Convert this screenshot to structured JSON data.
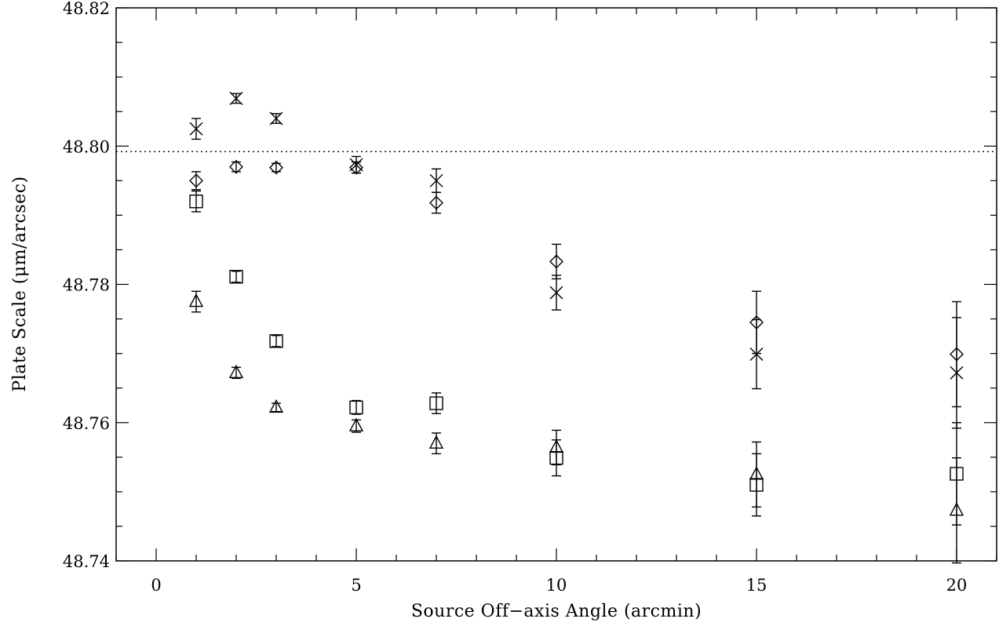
{
  "chart_data": {
    "type": "scatter",
    "title": "",
    "xlabel": "Source Off−axis Angle (arcmin)",
    "ylabel": "Plate Scale (μm/arcsec)",
    "xlim": [
      -1,
      21
    ],
    "ylim": [
      48.74,
      48.82
    ],
    "x_ticks": [
      0,
      5,
      10,
      15,
      20
    ],
    "x_tick_labels": [
      "0",
      "5",
      "10",
      "15",
      "20"
    ],
    "y_ticks": [
      48.74,
      48.76,
      48.78,
      48.8,
      48.82
    ],
    "y_tick_labels": [
      "48.74",
      "48.76",
      "48.78",
      "48.80",
      "48.82"
    ],
    "reference_line": {
      "y": 48.7992,
      "style": "dotted"
    },
    "grid": false,
    "legend": "none",
    "series": [
      {
        "marker": "x",
        "points": [
          {
            "x": 1,
            "y": 48.8025,
            "err": 0.0015
          },
          {
            "x": 2,
            "y": 48.8069,
            "err": 0.0007
          },
          {
            "x": 3,
            "y": 48.804,
            "err": 0.0007
          },
          {
            "x": 5,
            "y": 48.7973,
            "err": 0.0012
          },
          {
            "x": 7,
            "y": 48.795,
            "err": 0.0017
          },
          {
            "x": 10,
            "y": 48.7788,
            "err": 0.0025
          },
          {
            "x": 15,
            "y": 48.7699,
            "err": 0.005
          },
          {
            "x": 20,
            "y": 48.7672,
            "err": 0.008
          }
        ]
      },
      {
        "marker": "diamond",
        "points": [
          {
            "x": 1,
            "y": 48.795,
            "err": 0.0013
          },
          {
            "x": 2,
            "y": 48.797,
            "err": 0.0007
          },
          {
            "x": 3,
            "y": 48.7969,
            "err": 0.0006
          },
          {
            "x": 5,
            "y": 48.7969,
            "err": 0.0008
          },
          {
            "x": 7,
            "y": 48.7918,
            "err": 0.0015
          },
          {
            "x": 10,
            "y": 48.7833,
            "err": 0.0025
          },
          {
            "x": 15,
            "y": 48.7745,
            "err": 0.0045
          },
          {
            "x": 20,
            "y": 48.7699,
            "err": 0.0076
          }
        ]
      },
      {
        "marker": "square",
        "points": [
          {
            "x": 1,
            "y": 48.792,
            "err": 0.0015
          },
          {
            "x": 2,
            "y": 48.7811,
            "err": 0.0008
          },
          {
            "x": 3,
            "y": 48.7718,
            "err": 0.0008
          },
          {
            "x": 5,
            "y": 48.7622,
            "err": 0.001
          },
          {
            "x": 7,
            "y": 48.7628,
            "err": 0.0015
          },
          {
            "x": 10,
            "y": 48.7549,
            "err": 0.0026
          },
          {
            "x": 15,
            "y": 48.751,
            "err": 0.0045
          },
          {
            "x": 20,
            "y": 48.7526,
            "err": 0.0074
          }
        ]
      },
      {
        "marker": "triangle",
        "points": [
          {
            "x": 1,
            "y": 48.7775,
            "err": 0.0015
          },
          {
            "x": 2,
            "y": 48.7672,
            "err": 0.0008
          },
          {
            "x": 3,
            "y": 48.7622,
            "err": 0.0006
          },
          {
            "x": 5,
            "y": 48.7595,
            "err": 0.0009
          },
          {
            "x": 7,
            "y": 48.757,
            "err": 0.0015
          },
          {
            "x": 10,
            "y": 48.7564,
            "err": 0.0025
          },
          {
            "x": 15,
            "y": 48.7525,
            "err": 0.0047
          },
          {
            "x": 20,
            "y": 48.7473,
            "err": 0.0076
          }
        ]
      }
    ]
  }
}
